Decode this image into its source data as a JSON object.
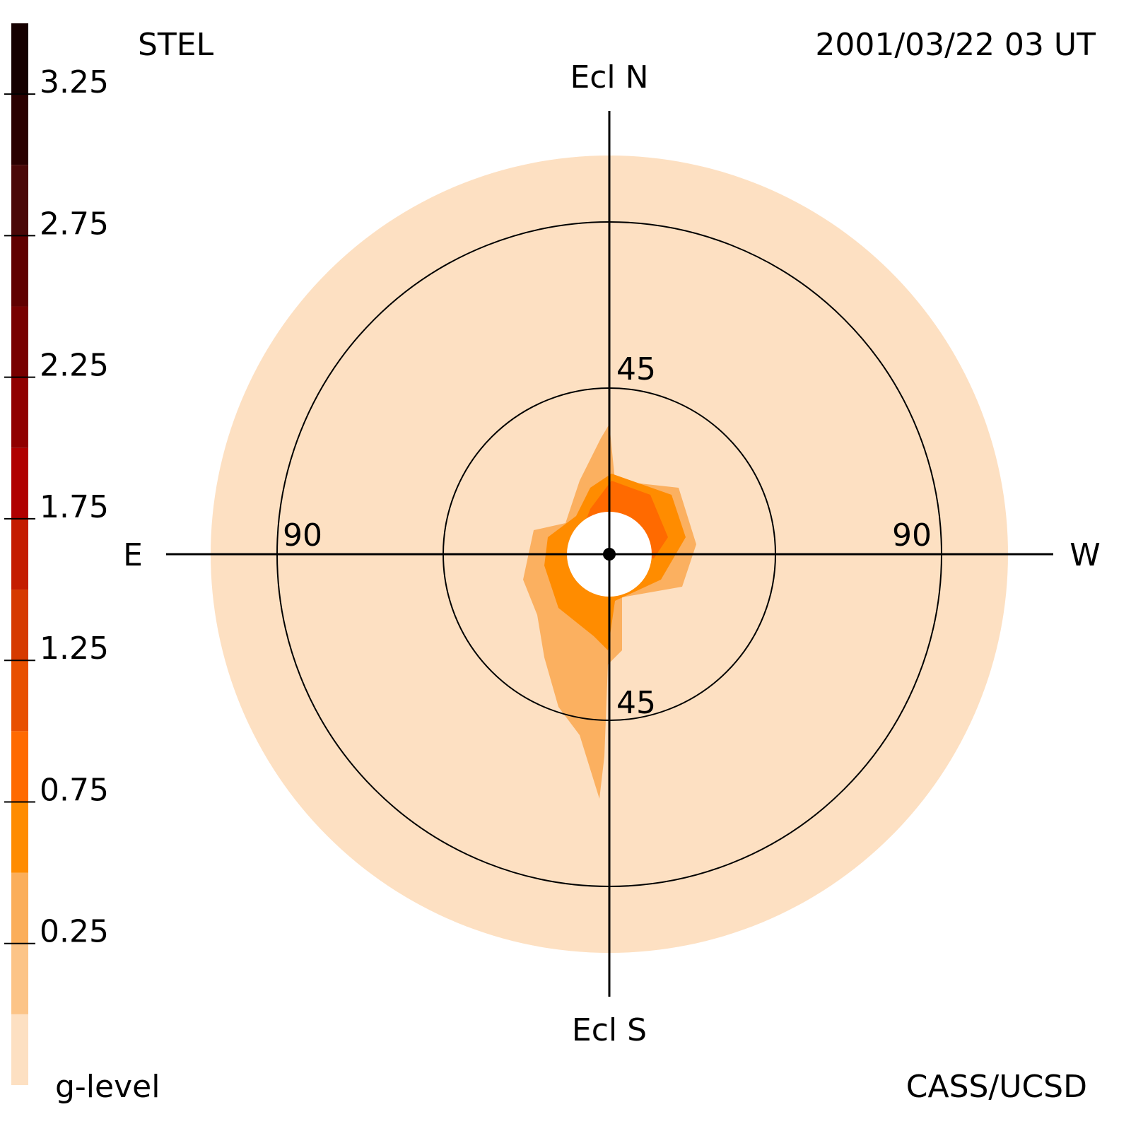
{
  "chart_data": {
    "type": "polar-map",
    "title": "STEL",
    "timestamp": "2001/03/22 03 UT",
    "credit": "CASS/UCSD",
    "north_label": "Ecl N",
    "south_label": "Ecl S",
    "east_label": "E",
    "west_label": "W",
    "rlim": [
      0,
      108
    ],
    "rticks": [
      45,
      90
    ],
    "disc_color": "#fde0c2",
    "colorbar": {
      "label": "g-level",
      "lim": [
        -0.25,
        3.5
      ],
      "ticks": [
        0.25,
        0.75,
        1.25,
        1.75,
        2.25,
        2.75,
        3.25
      ],
      "bounds": [
        -0.25,
        0,
        0.25,
        0.5,
        0.75,
        1,
        1.25,
        1.5,
        1.75,
        2,
        2.25,
        2.5,
        2.75,
        3,
        3.25,
        3.5
      ],
      "colors": [
        "#fde0c2",
        "#fcc487",
        "#fbae5a",
        "#ff8c00",
        "#ff6a00",
        "#e85000",
        "#d63a00",
        "#c41c00",
        "#b00000",
        "#900000",
        "#780000",
        "#600000",
        "#4a0808",
        "#2a0000",
        "#150000"
      ]
    }
  }
}
